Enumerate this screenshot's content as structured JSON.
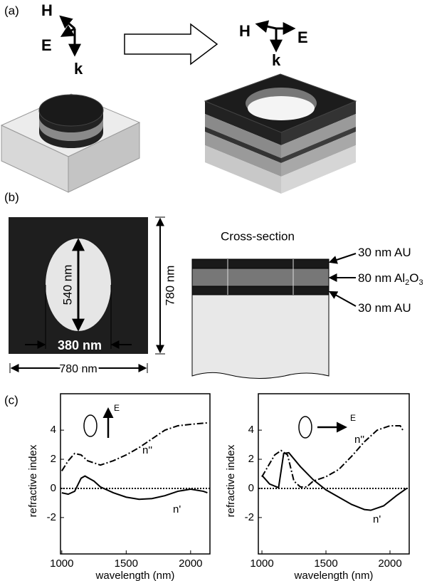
{
  "panels": [
    "(a)",
    "(b)",
    "(c)"
  ],
  "panel_a": {
    "left_axes": {
      "H": "H",
      "E": "E",
      "k": "k"
    },
    "right_axes": {
      "H": "H",
      "E": "E",
      "k": "k"
    }
  },
  "panel_b": {
    "hole_height": "540 nm",
    "hole_width": "380 nm",
    "period_vertical": "780 nm",
    "period_horizontal": "780 nm"
  },
  "cross_section": {
    "title": "Cross-section",
    "labels": [
      [
        "30 nm AU"
      ],
      [
        "80 nm Al",
        "2",
        "O",
        "3"
      ],
      [
        "30 nm AU"
      ]
    ]
  },
  "chart_data": [
    {
      "type": "line",
      "xlabel": "wavelength (nm)",
      "ylabel": "refractive index",
      "inset_label": "E",
      "xlim": [
        990,
        2150
      ],
      "ylim": [
        -4.5,
        6.5
      ],
      "xticks": [
        1000,
        1500,
        2000
      ],
      "yticks": [
        -2,
        0,
        2,
        4
      ],
      "zero_line": true,
      "series": [
        {
          "name": "n''",
          "color": "#000000",
          "dash": "dash-dot",
          "x": [
            1000,
            1050,
            1100,
            1150,
            1200,
            1300,
            1400,
            1500,
            1600,
            1700,
            1800,
            1900,
            2000,
            2130
          ],
          "values": [
            1.2,
            1.9,
            2.4,
            2.3,
            1.9,
            1.6,
            1.9,
            2.3,
            2.8,
            3.4,
            4.0,
            4.3,
            4.4,
            4.5
          ]
        },
        {
          "name": "n'",
          "color": "#000000",
          "dash": "solid",
          "x": [
            1000,
            1050,
            1100,
            1150,
            1180,
            1250,
            1300,
            1400,
            1500,
            1600,
            1700,
            1800,
            1900,
            2000,
            2100,
            2130
          ],
          "values": [
            -0.3,
            -0.4,
            -0.2,
            0.7,
            0.85,
            0.5,
            0.1,
            -0.3,
            -0.6,
            -0.75,
            -0.7,
            -0.5,
            -0.2,
            -0.05,
            -0.2,
            -0.3
          ]
        }
      ]
    },
    {
      "type": "line",
      "xlabel": "wavelength (nm)",
      "ylabel": "refractive index",
      "inset_label": "E",
      "xlim": [
        972,
        2150
      ],
      "ylim": [
        -4.5,
        6.5
      ],
      "xticks": [
        1000,
        1500,
        2000
      ],
      "yticks": [
        -2,
        0,
        2,
        4
      ],
      "zero_line": true,
      "series": [
        {
          "name": "n''",
          "color": "#000000",
          "dash": "dash-dot",
          "x": [
            1000,
            1100,
            1150,
            1200,
            1250,
            1300,
            1350,
            1400,
            1500,
            1600,
            1700,
            1800,
            1900,
            2000,
            2080,
            2100
          ],
          "values": [
            0.8,
            2.3,
            2.6,
            2.3,
            0.5,
            0.1,
            0.1,
            0.5,
            0.8,
            1.3,
            2.2,
            3.2,
            4.0,
            4.3,
            4.3,
            4.0
          ]
        },
        {
          "name": "n'",
          "color": "#000000",
          "dash": "solid",
          "x": [
            1000,
            1060,
            1130,
            1170,
            1210,
            1300,
            1400,
            1500,
            1600,
            1700,
            1800,
            1850,
            1950,
            2050,
            2130
          ],
          "values": [
            0.9,
            0.3,
            0.05,
            2.4,
            2.45,
            1.5,
            0.6,
            -0.1,
            -0.6,
            -1.1,
            -1.45,
            -1.5,
            -1.2,
            -0.5,
            0
          ]
        }
      ]
    }
  ]
}
